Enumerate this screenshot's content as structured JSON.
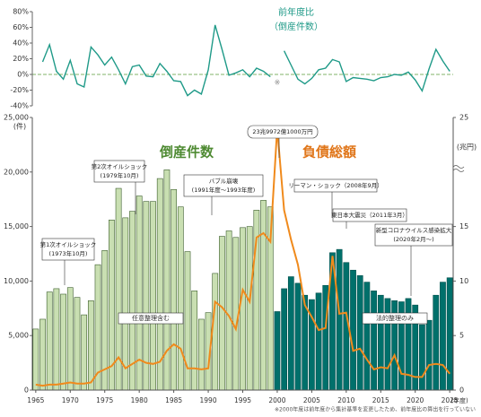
{
  "chart_data": {
    "type": "bar",
    "categories": [
      1965,
      1966,
      1967,
      1968,
      1969,
      1970,
      1971,
      1972,
      1973,
      1974,
      1975,
      1976,
      1977,
      1978,
      1979,
      1980,
      1981,
      1982,
      1983,
      1984,
      1985,
      1986,
      1987,
      1988,
      1989,
      1990,
      1991,
      1992,
      1993,
      1994,
      1995,
      1996,
      1997,
      1998,
      1999,
      2000,
      2001,
      2002,
      2003,
      2004,
      2005,
      2006,
      2007,
      2008,
      2009,
      2010,
      2011,
      2012,
      2013,
      2014,
      2015,
      2016,
      2017,
      2018,
      2019,
      2020,
      2021,
      2022,
      2023,
      2024,
      2025
    ],
    "xticks": [
      1965,
      1970,
      1975,
      1980,
      1985,
      1990,
      1995,
      2000,
      2005,
      2010,
      2015,
      2020,
      2025
    ],
    "x_label": "(年度)",
    "ylim": [
      0,
      25000
    ],
    "yticks": [
      0,
      {
        "value": 5000,
        "label": "5,000"
      },
      {
        "value": 10000,
        "label": "10,000"
      },
      {
        "value": 15000,
        "label": "15,000"
      },
      {
        "value": 20000,
        "label": "20,000"
      },
      {
        "value": 25000,
        "label": "25,000"
      }
    ],
    "y_label": "(件)",
    "y2lim": [
      0,
      25
    ],
    "y2ticks": [
      0,
      5,
      10,
      15,
      25
    ],
    "y2_label": "(兆円)",
    "series": [
      {
        "name": "任意整理含む",
        "type": "bar",
        "color": "#c9dfb2",
        "stroke": "#3c5e2c",
        "values": [
          5600,
          6500,
          9000,
          9300,
          8800,
          9400,
          8500,
          6900,
          8200,
          11500,
          12800,
          15600,
          18500,
          15800,
          16400,
          17800,
          17300,
          17300,
          19400,
          20200,
          18400,
          16800,
          12700,
          9100,
          6500,
          7100,
          10700,
          14100,
          14600,
          14000,
          14900,
          15000,
          16500,
          17400,
          16800,
          null,
          null,
          null,
          null,
          null,
          null,
          null,
          null,
          null,
          null,
          null,
          null,
          null,
          null,
          null,
          null,
          null,
          null,
          null,
          null,
          null,
          null,
          null,
          null,
          null,
          null
        ]
      },
      {
        "name": "法的整理のみ",
        "type": "bar",
        "color": "#00706b",
        "stroke": "#004f4b",
        "values": [
          null,
          null,
          null,
          null,
          null,
          null,
          null,
          null,
          null,
          null,
          null,
          null,
          null,
          null,
          null,
          null,
          null,
          null,
          null,
          null,
          null,
          null,
          null,
          null,
          null,
          null,
          null,
          null,
          null,
          null,
          null,
          null,
          null,
          null,
          null,
          7200,
          9300,
          10400,
          9800,
          8700,
          8300,
          8900,
          9600,
          12600,
          12900,
          11700,
          11000,
          10500,
          9900,
          9100,
          8700,
          8400,
          8200,
          8100,
          8400,
          7800,
          6000,
          6400,
          8700,
          9900,
          10300
        ]
      },
      {
        "name": "負債総額",
        "type": "line",
        "axis": "y2",
        "color": "#f08a1c",
        "values": [
          0.5,
          0.4,
          0.5,
          0.5,
          0.6,
          0.7,
          0.6,
          0.6,
          0.7,
          1.6,
          1.9,
          2.2,
          3.0,
          2.0,
          2.4,
          2.8,
          2.5,
          2.4,
          2.6,
          3.6,
          4.2,
          3.8,
          2.0,
          2.0,
          1.9,
          2.0,
          8.1,
          7.6,
          6.8,
          5.6,
          9.2,
          8.1,
          14.0,
          14.4,
          13.6,
          23.99721,
          16.5,
          13.8,
          11.5,
          7.8,
          6.7,
          5.5,
          5.7,
          12.3,
          7.0,
          7.1,
          3.6,
          3.8,
          2.8,
          1.9,
          2.1,
          2.0,
          3.2,
          1.5,
          1.4,
          1.2,
          1.2,
          2.3,
          2.4,
          2.3,
          1.5
        ]
      }
    ],
    "count_label": "倒産件数",
    "yoy": {
      "type": "line",
      "title": [
        "前年度比",
        "（倒産件数）"
      ],
      "color": "#1f9a88",
      "mark": "※",
      "ylim": [
        -40,
        80
      ],
      "yticks": [
        {
          "value": -40,
          "label": "-40%"
        },
        {
          "value": -20,
          "label": "-20%"
        },
        {
          "value": 0,
          "label": "0%"
        },
        {
          "value": 20,
          "label": "20%"
        },
        {
          "value": 40,
          "label": "40%"
        },
        {
          "value": 60,
          "label": "60%"
        },
        {
          "value": 80,
          "label": "80%"
        }
      ],
      "values": [
        null,
        16,
        38,
        4,
        -6,
        18,
        -12,
        -16,
        35,
        25,
        12,
        22,
        6,
        -12,
        10,
        12,
        -2,
        -3,
        14,
        4,
        -8,
        -9,
        -27,
        -20,
        -25,
        6,
        63,
        32,
        -1,
        2,
        6,
        -3,
        8,
        4,
        -3,
        null,
        30,
        12,
        -6,
        -12,
        -5,
        6,
        8,
        19,
        16,
        -9,
        -4,
        -5,
        -6,
        -8,
        -4,
        -3,
        0,
        -1,
        3,
        -7,
        -21,
        7,
        32,
        17,
        4
      ]
    },
    "annotations": [
      {
        "lines": [
          "第1次オイルショック",
          "(1973年10月)"
        ]
      },
      {
        "lines": [
          "第2次オイルショック",
          "(1979年10月)"
        ]
      },
      {
        "lines": [
          "バブル崩壊",
          "(1991年度～1993年度)"
        ]
      },
      {
        "lines": [
          "23兆9972億1000万円"
        ]
      },
      {
        "lines": [
          "リーマン・ショック（2008年9月）"
        ]
      },
      {
        "lines": [
          "東日本大震災（2011年3月）"
        ]
      },
      {
        "lines": [
          "新型コロナウイルス感染拡大",
          "(2020年2月～)"
        ]
      }
    ],
    "footnote": "※2000年度は前年度から集計基準を変更したため、前年度比の算出を行っていない"
  }
}
